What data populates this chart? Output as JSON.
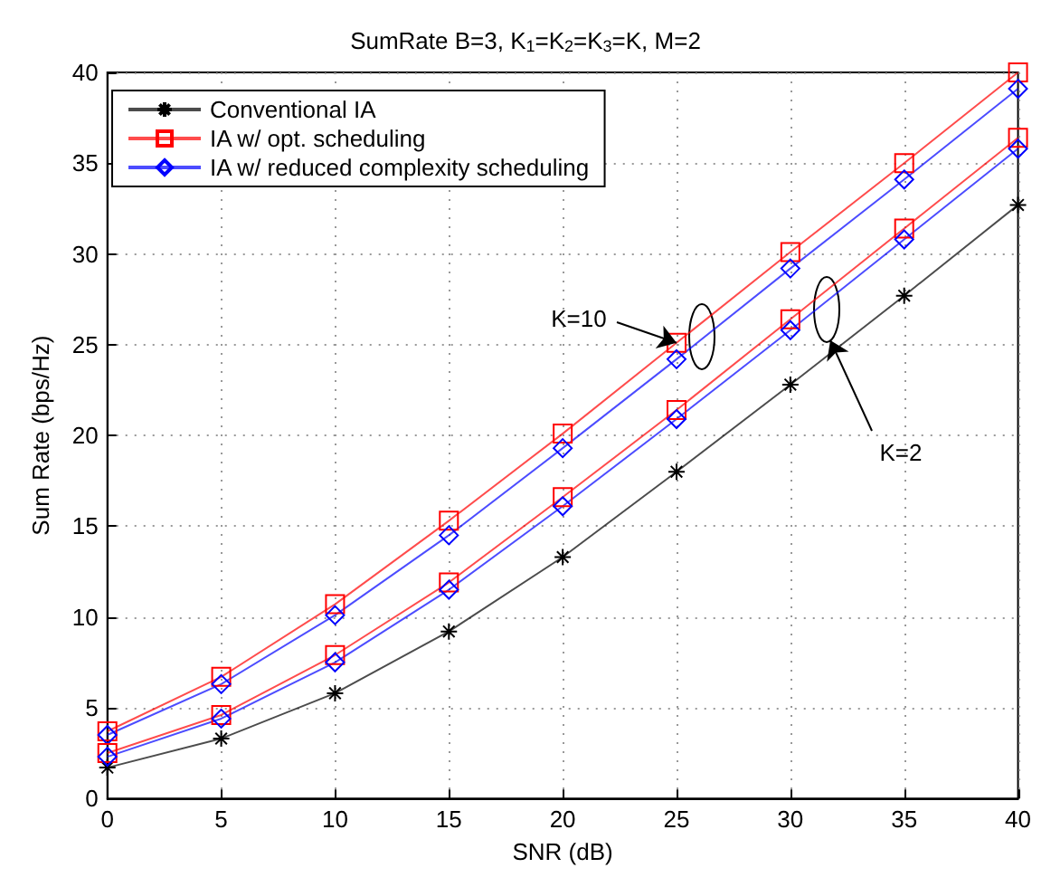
{
  "chart_data": {
    "type": "line",
    "title": "SumRate B=3, K$_{1}$=K$_{2}$=K$_{3}$=K, M=2",
    "xlabel": "SNR (dB)",
    "ylabel": "Sum Rate (bps/Hz)",
    "x": [
      0,
      5,
      10,
      15,
      20,
      25,
      30,
      35,
      40
    ],
    "series": [
      {
        "name": "Conventional IA",
        "color": "#000000",
        "marker": "cross",
        "values": [
          1.7,
          3.3,
          5.8,
          9.2,
          13.3,
          18.0,
          22.8,
          27.7,
          32.7
        ]
      },
      {
        "name": "IA w/ opt. scheduling",
        "color": "#ff0000",
        "marker": "square",
        "values": [
          3.7,
          6.7,
          10.7,
          15.3,
          20.1,
          25.1,
          30.1,
          35.0,
          40.0
        ]
      },
      {
        "name": "IA w/ reduced complexity scheduling",
        "color": "#0000ff",
        "marker": "diamond",
        "values": [
          3.5,
          6.3,
          10.1,
          14.5,
          19.3,
          24.2,
          29.2,
          34.1,
          39.1
        ]
      },
      {
        "color": "#ff0000",
        "marker": "square",
        "values": [
          2.5,
          4.6,
          7.9,
          11.9,
          16.6,
          21.4,
          26.4,
          31.4,
          36.4
        ]
      },
      {
        "color": "#0000ff",
        "marker": "diamond",
        "values": [
          2.3,
          4.4,
          7.5,
          11.5,
          16.1,
          20.9,
          25.8,
          30.8,
          35.8
        ]
      }
    ],
    "xlim": [
      0,
      40
    ],
    "xticks": [
      0,
      5,
      10,
      15,
      20,
      25,
      30,
      35,
      40
    ],
    "ylim": [
      0,
      40
    ],
    "yticks": [
      0,
      5,
      10,
      15,
      20,
      25,
      30,
      35,
      40
    ],
    "grid": true,
    "legend": "top left",
    "line_style": "solid",
    "annotations": [
      {
        "text": "K=10",
        "x": 25,
        "y": 25.1
      },
      "K=2"
    ]
  }
}
